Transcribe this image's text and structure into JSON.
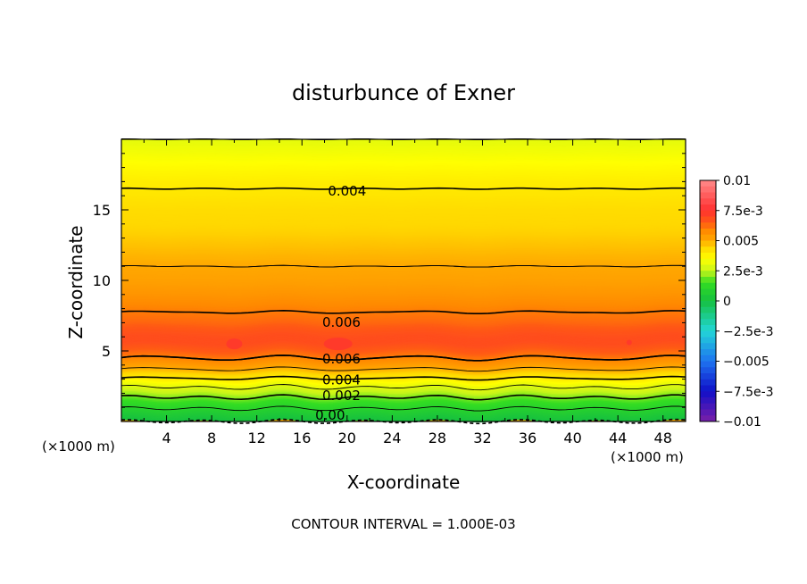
{
  "chart_data": {
    "type": "contour",
    "title": "disturbunce of Exner",
    "xlabel": "X-coordinate",
    "ylabel": "Z-coordinate",
    "x_unit_left": "(×1000 m)",
    "x_unit_right": "(×1000 m)",
    "xlim": [
      0,
      50
    ],
    "ylim": [
      0,
      20
    ],
    "x_ticks": [
      4,
      8,
      12,
      16,
      20,
      24,
      28,
      32,
      36,
      40,
      44,
      48
    ],
    "y_ticks": [
      5,
      10,
      15
    ],
    "footnote": "CONTOUR INTERVAL = 1.000E-03",
    "colorbar": {
      "labels": [
        "0.01",
        "7.5e-3",
        "0.005",
        "2.5e-3",
        "0",
        "−2.5e-3",
        "−0.005",
        "−7.5e-3",
        "−0.01"
      ],
      "range": [
        -0.01,
        0.01
      ]
    },
    "contour_labels": [
      {
        "text": "0.004",
        "x": 20.0,
        "z": 16.4
      },
      {
        "text": "0.006",
        "x": 19.5,
        "z": 7.1
      },
      {
        "text": "0.006",
        "x": 19.5,
        "z": 4.5
      },
      {
        "text": "0.004",
        "x": 19.5,
        "z": 3.0
      },
      {
        "text": "0.002",
        "x": 19.5,
        "z": 1.9
      },
      {
        "text": "0.00",
        "x": 18.5,
        "z": 0.5
      }
    ],
    "profile_z": [
      0.0,
      0.5,
      1.0,
      1.5,
      2.0,
      2.5,
      3.0,
      3.5,
      4.0,
      4.5,
      5.0,
      5.5,
      6.0,
      6.5,
      7.0,
      8.0,
      9.0,
      10.0,
      11.0,
      12.0,
      13.0,
      14.0,
      15.0,
      16.0,
      17.0,
      18.0,
      19.0,
      20.0
    ],
    "profile_value": [
      0.0,
      0.0005,
      0.0011,
      0.0017,
      0.0024,
      0.0031,
      0.0039,
      0.0047,
      0.0054,
      0.006,
      0.0065,
      0.0068,
      0.0068,
      0.0066,
      0.0063,
      0.0059,
      0.0055,
      0.0052,
      0.005,
      0.0048,
      0.0046,
      0.0044,
      0.0043,
      0.0041,
      0.0039,
      0.0036,
      0.0033,
      0.003
    ]
  }
}
